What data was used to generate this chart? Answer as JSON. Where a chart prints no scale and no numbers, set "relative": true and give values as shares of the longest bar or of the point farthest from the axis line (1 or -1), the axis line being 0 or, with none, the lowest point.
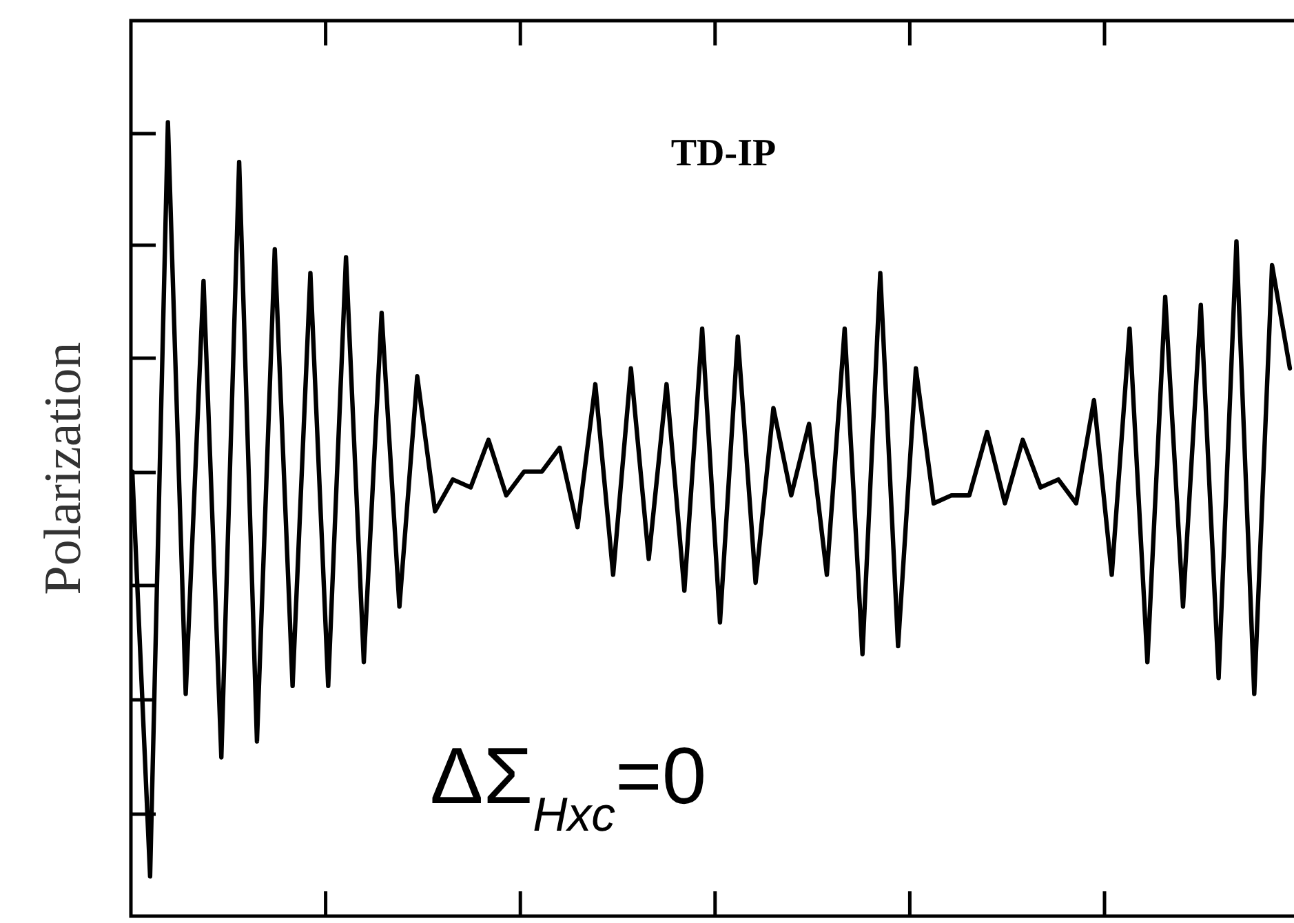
{
  "chart_data": {
    "type": "line",
    "title": "TD-IP",
    "ylabel": "Polarization",
    "annotations": [
      "ΔΣ$_{Hxc}$=0"
    ],
    "relative": true,
    "marker": "none",
    "line_style": "solid",
    "categories": [
      null,
      null,
      null,
      null,
      null,
      null,
      null,
      null,
      null,
      null,
      null,
      null,
      null,
      null,
      null,
      null,
      null,
      null,
      null,
      null,
      null,
      null,
      null,
      null,
      null,
      null,
      null,
      null,
      null,
      null,
      null,
      null,
      null,
      null,
      null,
      null,
      null,
      null,
      null,
      null,
      null,
      null,
      null,
      null,
      null,
      null,
      null,
      null,
      null,
      null,
      null,
      null,
      null,
      null,
      null,
      null,
      null,
      null,
      null,
      null,
      null,
      null,
      null,
      null,
      null,
      null
    ],
    "series": [
      {
        "color": "#000000",
        "values": [
          0.56,
          0.05,
          1,
          0.28,
          0.8,
          0.2,
          0.95,
          0.22,
          0.84,
          0.29,
          0.81,
          0.29,
          0.83,
          0.32,
          0.76,
          0.39,
          0.68,
          0.51,
          0.55,
          0.54,
          0.6,
          0.53,
          0.56,
          0.56,
          0.59,
          0.49,
          0.67,
          0.43,
          0.69,
          0.45,
          0.67,
          0.41,
          0.74,
          0.37,
          0.73,
          0.42,
          0.64,
          0.53,
          0.62,
          0.43,
          0.74,
          0.33,
          0.81,
          0.34,
          0.69,
          0.52,
          0.53,
          0.53,
          0.61,
          0.52,
          0.6,
          0.54,
          0.55,
          0.52,
          0.65,
          0.43,
          0.74,
          0.32,
          0.78,
          0.39,
          0.77,
          0.3,
          0.85,
          0.28,
          0.82,
          0.69
        ]
      }
    ]
  }
}
